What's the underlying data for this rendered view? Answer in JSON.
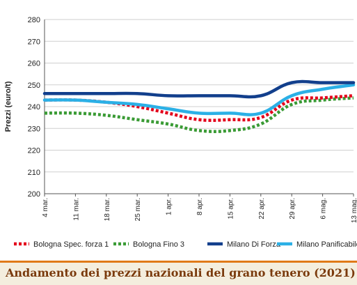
{
  "chart_data": {
    "type": "line",
    "title": "Andamento dei prezzi nazionali del grano tenero (2021)",
    "xlabel": "",
    "ylabel": "Prezzi (euro/t)",
    "ylim": [
      200,
      280
    ],
    "yticks": [
      200,
      210,
      220,
      230,
      240,
      250,
      260,
      270,
      280
    ],
    "categories": [
      "4 mar.",
      "11 mar.",
      "18 mar.",
      "25 mar.",
      "1 apr.",
      "8 apr.",
      "15 apr.",
      "22 apr.",
      "29 apr.",
      "6 mag.",
      "13 mag."
    ],
    "grid": "horizontal",
    "legend_position": "bottom",
    "series": [
      {
        "name": "Bologna Spec. forza 1",
        "color": "#e3001b",
        "style": "dotted",
        "values": [
          243,
          243,
          242,
          240,
          237,
          234,
          234,
          235,
          243,
          244,
          245
        ]
      },
      {
        "name": "Bologna Fino 3",
        "color": "#3a9b35",
        "style": "dotted",
        "values": [
          237,
          237,
          236,
          234,
          232,
          229,
          229,
          232,
          241,
          243,
          244
        ]
      },
      {
        "name": "Milano Di Forza",
        "color": "#123f8c",
        "style": "solid",
        "values": [
          246,
          246,
          246,
          246,
          245,
          245,
          245,
          245,
          251,
          251,
          251
        ]
      },
      {
        "name": "Milano Panificabile",
        "color": "#2bb0e6",
        "style": "solid",
        "values": [
          243,
          243,
          242,
          241,
          239,
          237,
          237,
          237,
          245,
          248,
          250
        ]
      }
    ]
  }
}
